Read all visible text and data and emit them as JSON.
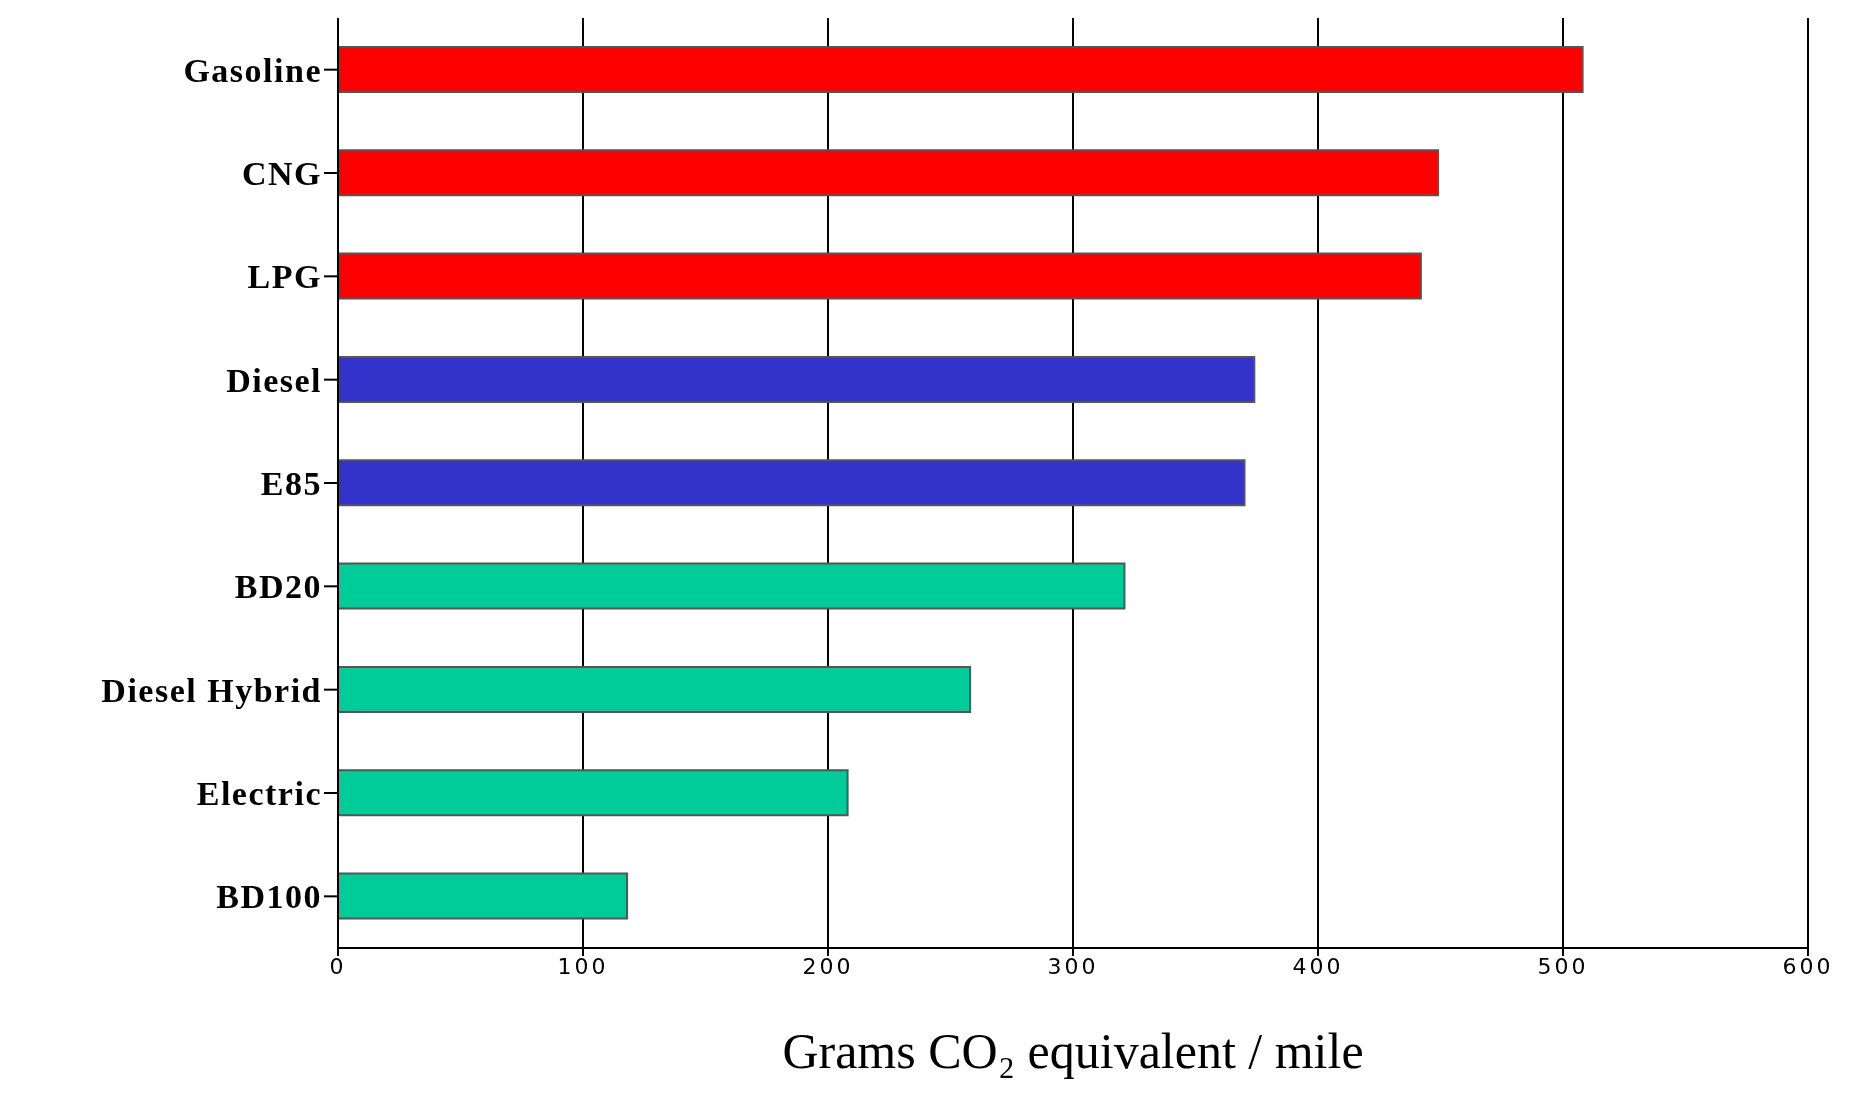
{
  "chart_data": {
    "type": "bar",
    "orientation": "horizontal",
    "xlabel": "Grams CO₂ equivalent / mile",
    "categories": [
      "Gasoline",
      "CNG",
      "LPG",
      "Diesel",
      "E85",
      "BD20",
      "Diesel Hybrid",
      "Electric",
      "BD100"
    ],
    "values": [
      508,
      449,
      442,
      374,
      370,
      321,
      258,
      208,
      118
    ],
    "colors": [
      "#ff0000",
      "#ff0000",
      "#ff0000",
      "#3333cc",
      "#3333cc",
      "#00cc99",
      "#00cc99",
      "#00cc99",
      "#00cc99"
    ],
    "xlim": [
      0,
      600
    ],
    "xticks": [
      0,
      100,
      200,
      300,
      400,
      500,
      600
    ],
    "grid": "x"
  }
}
